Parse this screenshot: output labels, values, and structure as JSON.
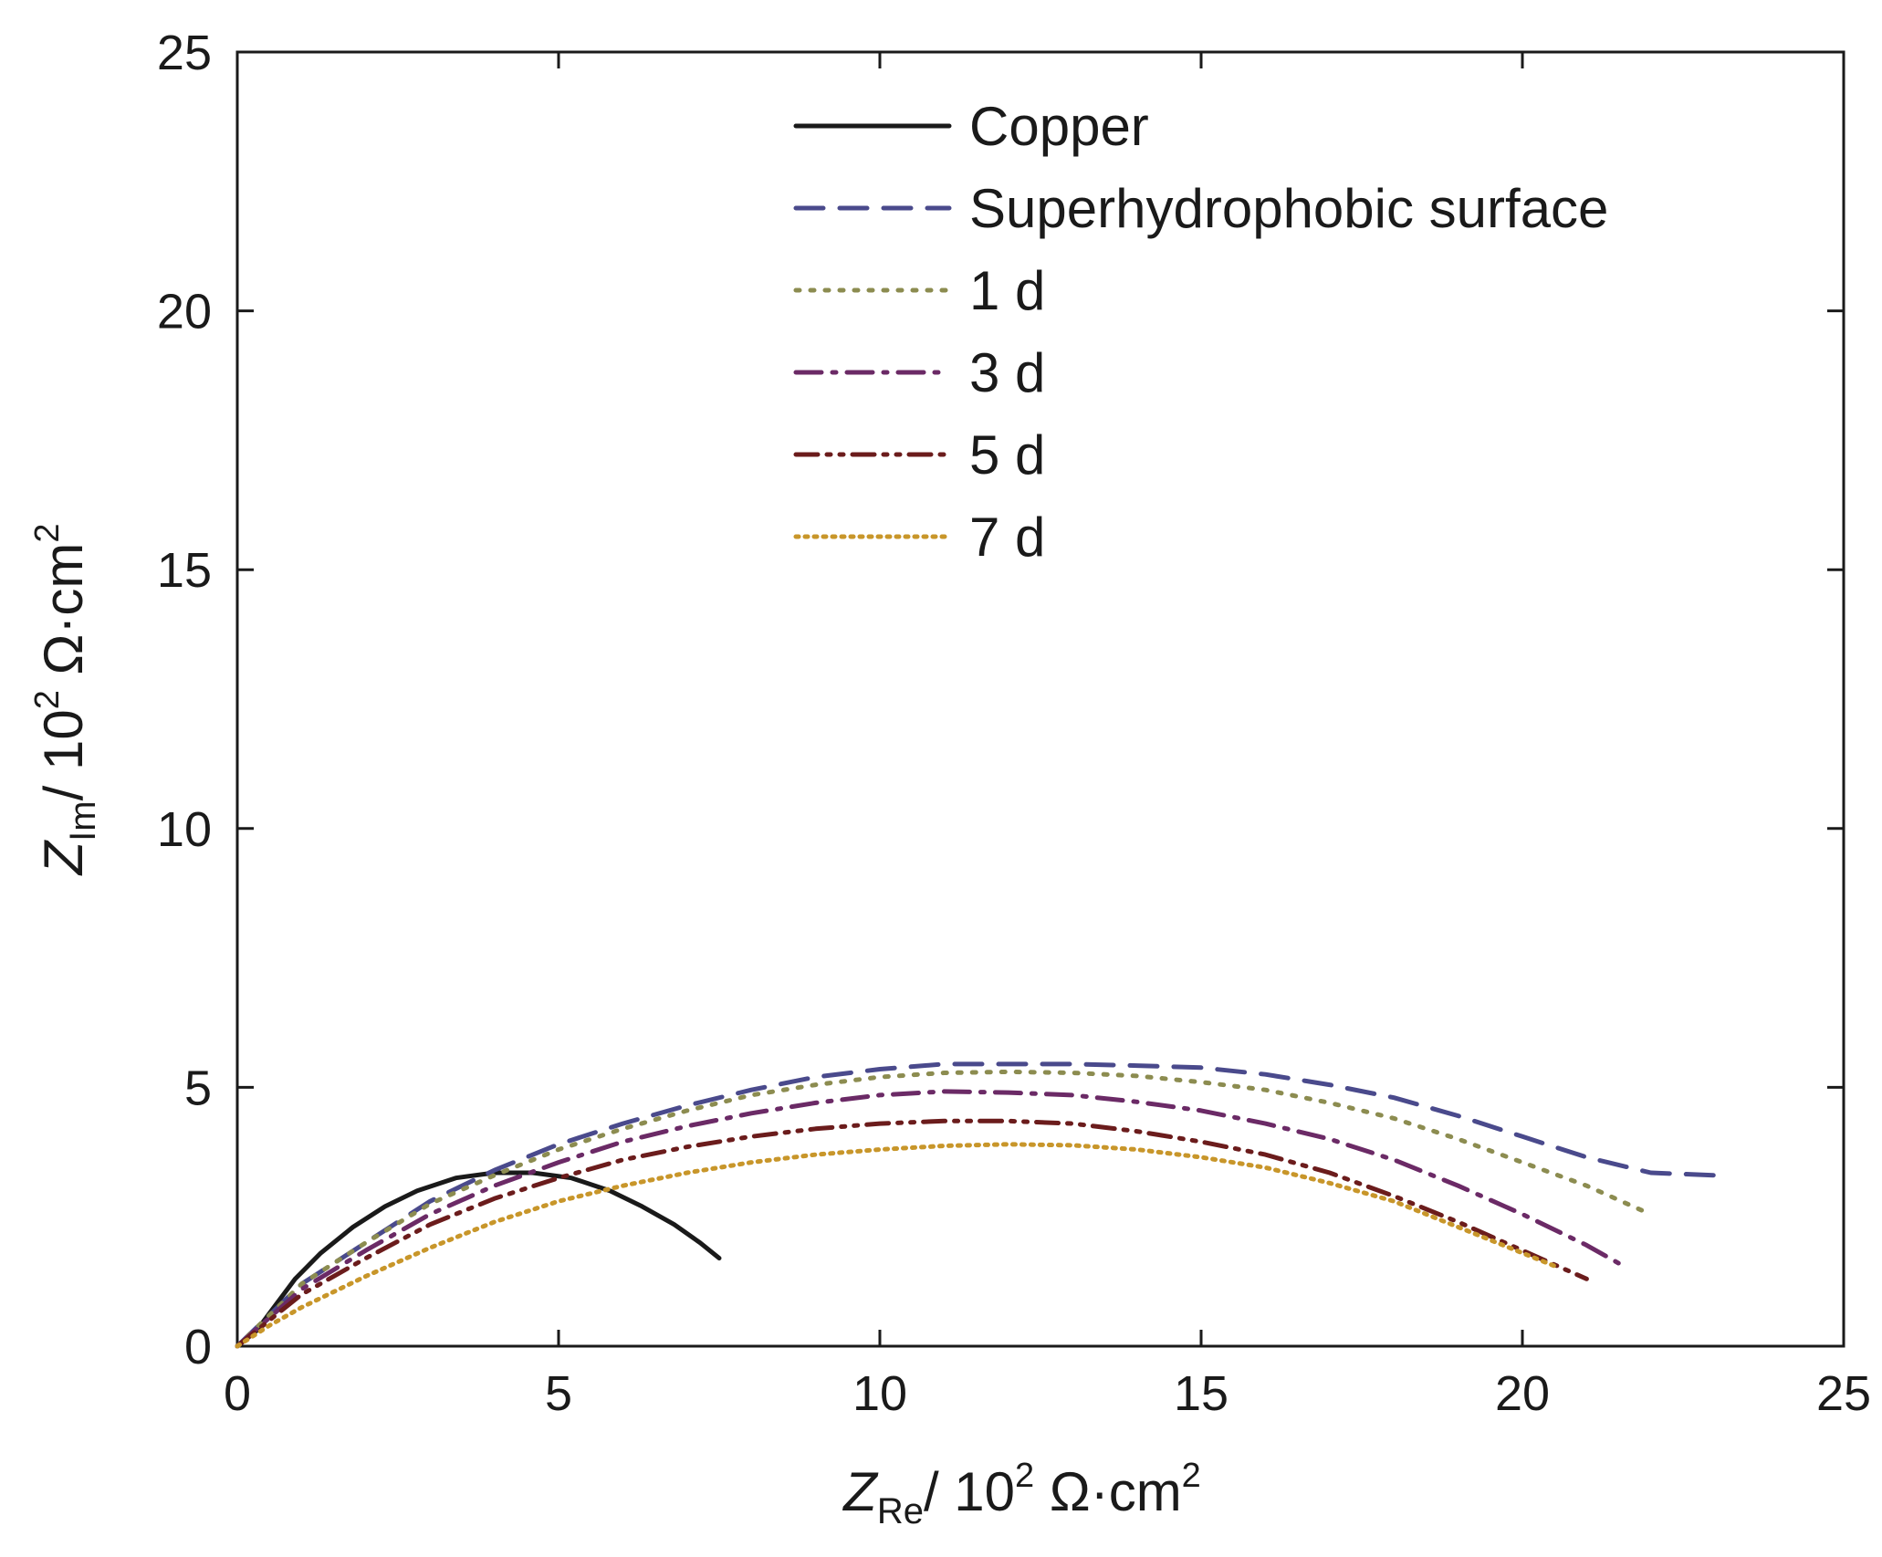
{
  "chart_data": {
    "type": "line",
    "title": "",
    "xlabel": {
      "symbol": "Z",
      "subscript": "Re",
      "unit": "/ 10",
      "exp": "2",
      "unit_tail": " Ω·cm",
      "unit_exp": "2"
    },
    "ylabel": {
      "symbol": "Z",
      "subscript": "Im",
      "unit": "/ 10",
      "exp": "2",
      "unit_tail": " Ω·cm",
      "unit_exp": "2"
    },
    "xlim": [
      0,
      25
    ],
    "ylim": [
      0,
      25
    ],
    "xticks": [
      "0",
      "5",
      "10",
      "15",
      "20",
      "25"
    ],
    "yticks": [
      "0",
      "5",
      "10",
      "15",
      "20",
      "25"
    ],
    "grid": false,
    "legend_position": "top-center",
    "series": [
      {
        "name": "Copper",
        "color": "#1a1a1a",
        "dash": "solid",
        "x": [
          0,
          0.3,
          0.6,
          0.9,
          1.3,
          1.8,
          2.3,
          2.8,
          3.4,
          4.0,
          4.6,
          5.2,
          5.8,
          6.3,
          6.8,
          7.2,
          7.5
        ],
        "y": [
          0,
          0.3,
          0.8,
          1.3,
          1.8,
          2.3,
          2.7,
          3.0,
          3.25,
          3.35,
          3.35,
          3.25,
          3.0,
          2.7,
          2.35,
          2.0,
          1.7
        ]
      },
      {
        "name": "Superhydrophobic surface",
        "color": "#4a4a8c",
        "dash": "dashed",
        "x": [
          0,
          0.5,
          1,
          2,
          3,
          4,
          5,
          6,
          7,
          8,
          9,
          10,
          11,
          12,
          13,
          14,
          15,
          16,
          17,
          18,
          19,
          20,
          21,
          22,
          23
        ],
        "y": [
          0,
          0.6,
          1.2,
          2.0,
          2.8,
          3.4,
          3.9,
          4.3,
          4.65,
          4.95,
          5.2,
          5.35,
          5.45,
          5.45,
          5.45,
          5.42,
          5.38,
          5.25,
          5.05,
          4.8,
          4.45,
          4.05,
          3.65,
          3.35,
          3.3
        ]
      },
      {
        "name": "1 d",
        "color": "#8c8c50",
        "dash": "dotted",
        "x": [
          0,
          0.5,
          1,
          2,
          3,
          4,
          5,
          6,
          7,
          8,
          9,
          10,
          11,
          12,
          13,
          14,
          15,
          16,
          17,
          18,
          19,
          20,
          21,
          21.9
        ],
        "y": [
          0,
          0.6,
          1.2,
          2.0,
          2.75,
          3.3,
          3.8,
          4.2,
          4.55,
          4.85,
          5.05,
          5.2,
          5.28,
          5.3,
          5.28,
          5.22,
          5.1,
          4.95,
          4.7,
          4.4,
          4.0,
          3.55,
          3.1,
          2.6
        ]
      },
      {
        "name": "3 d",
        "color": "#6b2a66",
        "dash": "dash-dot",
        "x": [
          0,
          0.5,
          1,
          2,
          3,
          4,
          5,
          6,
          7,
          8,
          9,
          10,
          11,
          12,
          13,
          14,
          15,
          16,
          17,
          18,
          19,
          20,
          21,
          21.5
        ],
        "y": [
          0,
          0.55,
          1.1,
          1.85,
          2.55,
          3.1,
          3.55,
          3.95,
          4.25,
          4.5,
          4.7,
          4.85,
          4.92,
          4.9,
          4.85,
          4.72,
          4.55,
          4.3,
          4.0,
          3.6,
          3.1,
          2.55,
          1.95,
          1.6
        ]
      },
      {
        "name": "5 d",
        "color": "#6b1c1c",
        "dash": "dash-dot-dot",
        "x": [
          0,
          0.5,
          1,
          2,
          3,
          4,
          5,
          6,
          7,
          8,
          9,
          10,
          11,
          12,
          13,
          14,
          15,
          16,
          17,
          18,
          19,
          20,
          21
        ],
        "y": [
          0,
          0.5,
          1.0,
          1.7,
          2.35,
          2.85,
          3.25,
          3.6,
          3.85,
          4.05,
          4.2,
          4.3,
          4.35,
          4.35,
          4.3,
          4.15,
          3.95,
          3.7,
          3.35,
          2.9,
          2.4,
          1.85,
          1.3
        ]
      },
      {
        "name": "7 d",
        "color": "#c8962a",
        "dash": "fine-dotted",
        "x": [
          0,
          0.5,
          1,
          2,
          3,
          4,
          5,
          6,
          7,
          8,
          9,
          10,
          11,
          12,
          13,
          14,
          15,
          16,
          17,
          18,
          19,
          20,
          20.5
        ],
        "y": [
          0,
          0.4,
          0.75,
          1.35,
          1.9,
          2.4,
          2.8,
          3.1,
          3.35,
          3.55,
          3.7,
          3.8,
          3.87,
          3.9,
          3.88,
          3.8,
          3.65,
          3.45,
          3.15,
          2.8,
          2.3,
          1.8,
          1.55
        ]
      }
    ]
  }
}
